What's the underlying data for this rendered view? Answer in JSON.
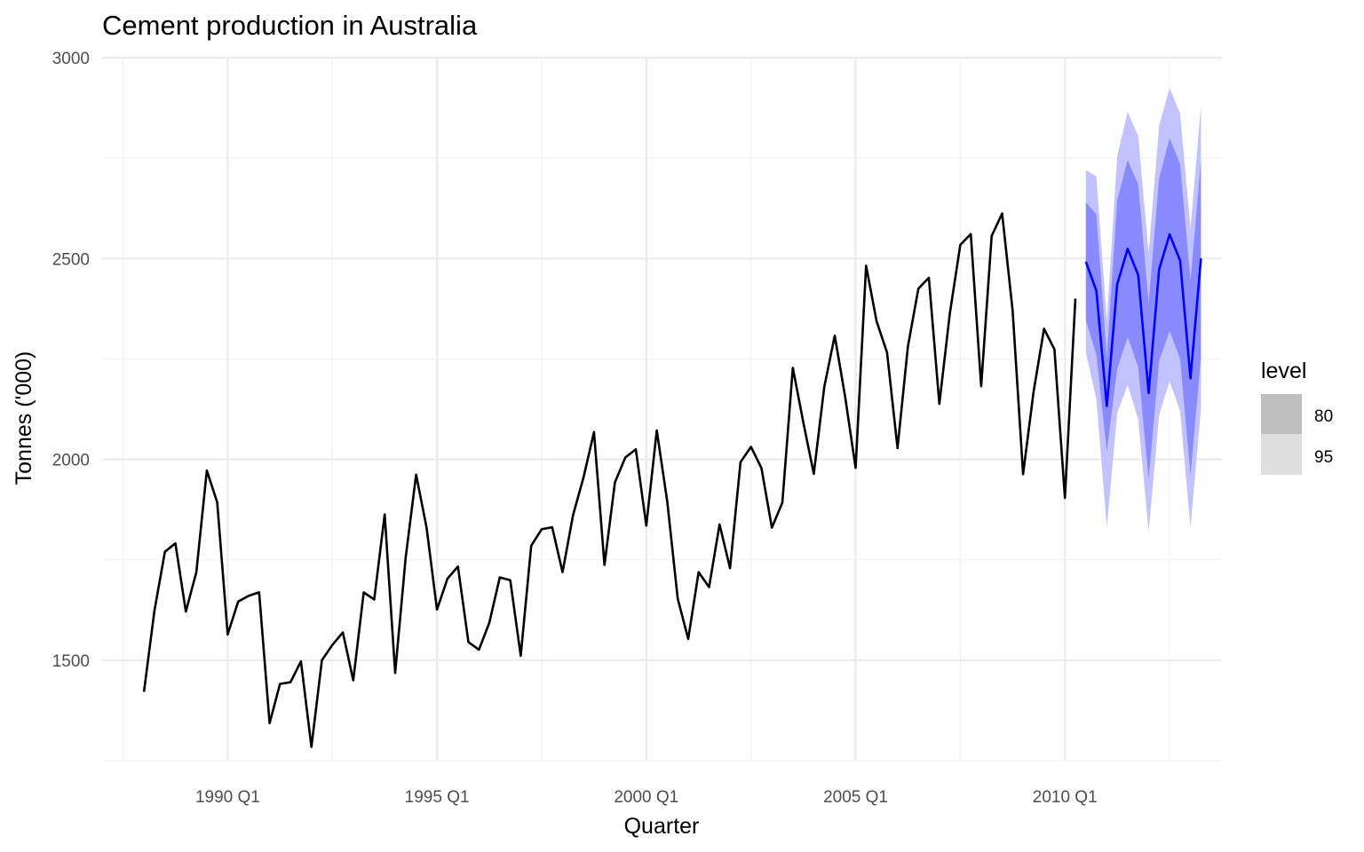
{
  "chart_data": {
    "type": "line",
    "title": "Cement production in Australia",
    "xlabel": "Quarter",
    "ylabel": "Tonnes ('000)",
    "x_axis": {
      "range": [
        1987.0,
        2013.75
      ],
      "major_ticks": [
        {
          "value": 1990.0,
          "label": "1990 Q1"
        },
        {
          "value": 1995.0,
          "label": "1995 Q1"
        },
        {
          "value": 2000.0,
          "label": "2000 Q1"
        },
        {
          "value": 2005.0,
          "label": "2005 Q1"
        },
        {
          "value": 2010.0,
          "label": "2010 Q1"
        }
      ],
      "minor_ticks": [
        1987.5,
        1992.5,
        1997.5,
        2002.5,
        2007.5,
        2012.5
      ]
    },
    "y_axis": {
      "range": [
        1250,
        3000
      ],
      "major_ticks": [
        {
          "value": 1500,
          "label": "1500"
        },
        {
          "value": 2000,
          "label": "2000"
        },
        {
          "value": 2500,
          "label": "2500"
        },
        {
          "value": 3000,
          "label": "3000"
        }
      ],
      "minor_ticks": [
        1250,
        1750,
        2250,
        2750
      ]
    },
    "grid": true,
    "legend": {
      "title": "level",
      "placement": "right",
      "entries": [
        {
          "label": "80",
          "color": "#bebebe"
        },
        {
          "label": "95",
          "color": "#dedede"
        }
      ]
    },
    "history": {
      "start_year": 1988,
      "start_quarter": 1,
      "color": "#000000",
      "values": [
        1421,
        1623,
        1770,
        1791,
        1621,
        1719,
        1972,
        1893,
        1564,
        1646,
        1660,
        1669,
        1343,
        1441,
        1445,
        1497,
        1284,
        1500,
        1538,
        1569,
        1450,
        1669,
        1651,
        1863,
        1468,
        1755,
        1962,
        1831,
        1626,
        1703,
        1733,
        1545,
        1526,
        1593,
        1706,
        1699,
        1511,
        1785,
        1826,
        1831,
        1719,
        1861,
        1955,
        2068,
        1737,
        1943,
        2005,
        2025,
        1835,
        2072,
        1895,
        1653,
        1553,
        1719,
        1682,
        1838,
        1729,
        1993,
        2031,
        1978,
        1830,
        1892,
        2228,
        2092,
        1964,
        2180,
        2308,
        2156,
        1979,
        2482,
        2344,
        2266,
        2028,
        2281,
        2425,
        2452,
        2138,
        2363,
        2534,
        2561,
        2182,
        2556,
        2612,
        2371,
        1963,
        2168,
        2325,
        2274,
        1904,
        2400
      ]
    },
    "forecast": {
      "start_year": 2010,
      "start_quarter": 3,
      "line_color": "#0000ff",
      "band80_color": "#8a8aff",
      "band95_color": "#c2c2ff",
      "mean": [
        2492,
        2420,
        2133,
        2436,
        2524,
        2459,
        2165,
        2473,
        2560,
        2495,
        2202,
        2500
      ],
      "lo80": [
        2347,
        2260,
        2020,
        2225,
        2305,
        2230,
        1950,
        2245,
        2320,
        2250,
        1960,
        2255
      ],
      "hi80": [
        2640,
        2610,
        2255,
        2645,
        2745,
        2685,
        2390,
        2700,
        2800,
        2735,
        2445,
        2745
      ],
      "lo95": [
        2265,
        2150,
        1830,
        2115,
        2185,
        2100,
        1820,
        2110,
        2195,
        2120,
        1830,
        2125
      ],
      "hi95": [
        2720,
        2705,
        2345,
        2755,
        2865,
        2805,
        2515,
        2830,
        2925,
        2860,
        2575,
        2880
      ]
    }
  }
}
